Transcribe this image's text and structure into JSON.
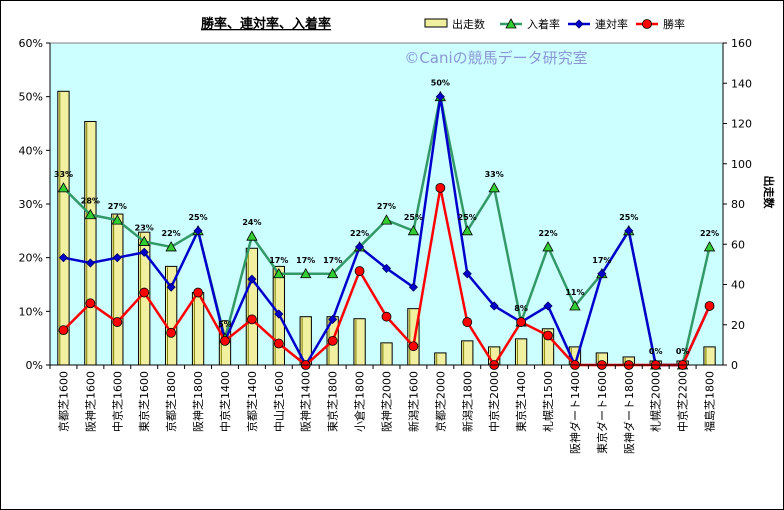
{
  "chart_data": {
    "type": "bar",
    "title": "勝率、連対率、入着率",
    "watermark": "©Caniの競馬データ研究室",
    "ylabel_right": "出走数",
    "categories": [
      "京都芝1600",
      "阪神芝1600",
      "中京芝1600",
      "東京芝1600",
      "京都芝1800",
      "阪神芝1800",
      "中京芝1400",
      "京都芝1400",
      "中山芝1600",
      "阪神芝1400",
      "東京芝1800",
      "小倉芝1800",
      "阪神芝2000",
      "新潟芝1600",
      "京都芝2000",
      "新潟芝1800",
      "中京芝2000",
      "東京芝1400",
      "札幌芝1500",
      "阪神ダート1400",
      "東京ダート1600",
      "阪神ダート1800",
      "札幌芝2000",
      "中京芝2200",
      "福島芝1800"
    ],
    "left_axis": {
      "min": 0,
      "max": 0.6,
      "step": 0.1,
      "tick_labels": [
        "0%",
        "10%",
        "20%",
        "30%",
        "40%",
        "50%",
        "60%"
      ]
    },
    "right_axis": {
      "min": 0,
      "max": 160,
      "step": 20,
      "tick_labels": [
        "0",
        "20",
        "40",
        "60",
        "80",
        "100",
        "120",
        "140",
        "160"
      ]
    },
    "bars": {
      "name": "出走数",
      "axis": "right",
      "color": "#f0f0a0",
      "values": [
        136,
        121,
        75,
        66,
        49,
        36,
        22,
        58,
        49,
        24,
        24,
        23,
        11,
        28,
        6,
        12,
        9,
        13,
        18,
        9,
        6,
        4,
        2,
        2,
        9
      ]
    },
    "series": [
      {
        "name": "入着率",
        "axis": "left",
        "color": "#339966",
        "marker": "triangle",
        "marker_color": "#33cc33",
        "values": [
          0.33,
          0.28,
          0.27,
          0.23,
          0.22,
          0.25,
          0.05,
          0.24,
          0.17,
          0.17,
          0.17,
          0.22,
          0.27,
          0.25,
          0.5,
          0.25,
          0.33,
          0.08,
          0.22,
          0.11,
          0.17,
          0.25,
          0.0,
          0.0,
          0.22
        ],
        "labels": [
          "33%",
          "28%",
          "27%",
          "23%",
          "22%",
          "25%",
          "5%",
          "24%",
          "17%",
          "17%",
          "17%",
          "22%",
          "27%",
          "25%",
          "50%",
          "25%",
          "33%",
          "8%",
          "22%",
          "11%",
          "17%",
          "25%",
          "0%",
          "0%",
          "22%"
        ]
      },
      {
        "name": "連対率",
        "axis": "left",
        "color": "#0000cc",
        "marker": "diamond",
        "marker_color": "#0000cc",
        "values": [
          0.2,
          0.19,
          0.2,
          0.21,
          0.145,
          0.25,
          0.045,
          0.16,
          0.095,
          0.0,
          0.085,
          0.22,
          0.18,
          0.145,
          0.5,
          0.17,
          0.11,
          0.08,
          0.11,
          0.0,
          0.17,
          0.25,
          0.0,
          0.0,
          0.11
        ]
      },
      {
        "name": "勝率",
        "axis": "left",
        "color": "#ff0000",
        "marker": "circle",
        "marker_color": "#ff0000",
        "values": [
          0.065,
          0.115,
          0.08,
          0.135,
          0.06,
          0.135,
          0.045,
          0.085,
          0.04,
          0.0,
          0.045,
          0.175,
          0.09,
          0.035,
          0.33,
          0.08,
          0.0,
          0.08,
          0.055,
          0.0,
          0.0,
          0.0,
          0.0,
          0.0,
          0.11
        ]
      }
    ],
    "legend": [
      "出走数",
      "入着率",
      "連対率",
      "勝率"
    ],
    "legend_position": "top-right",
    "grid": false
  }
}
